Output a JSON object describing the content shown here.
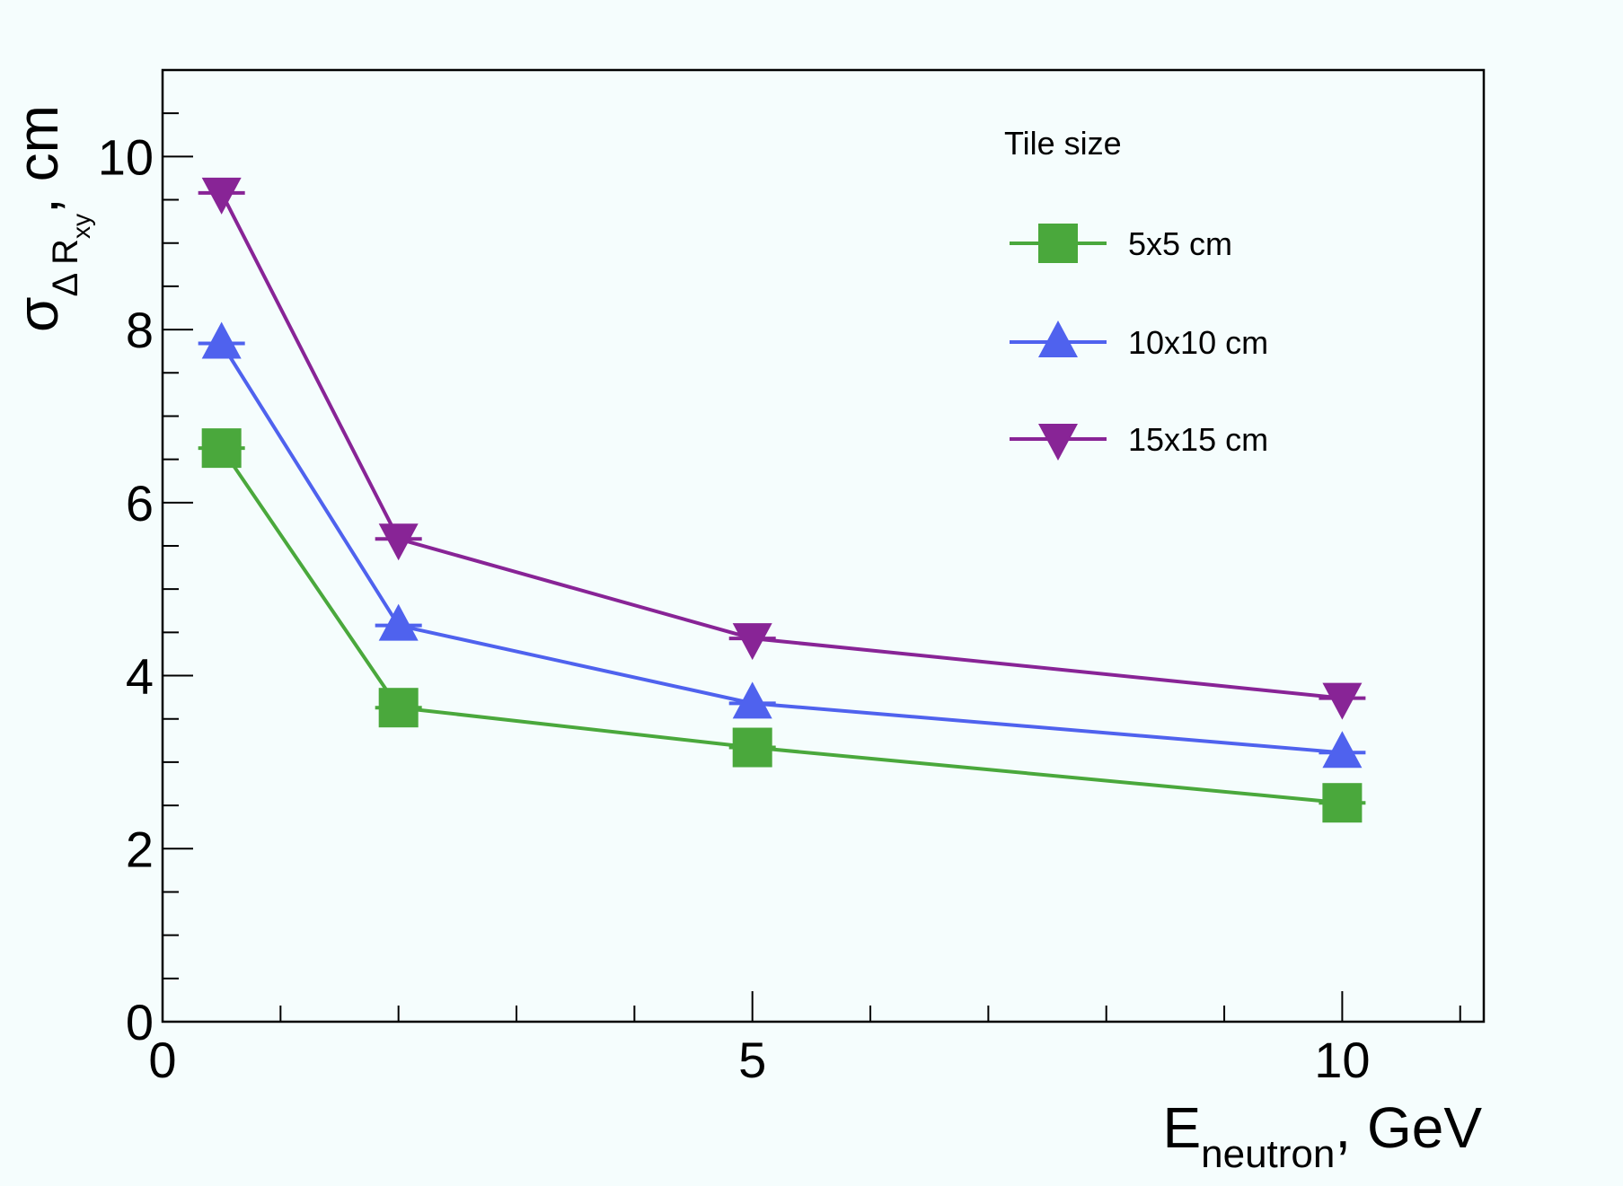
{
  "chart_data": {
    "type": "line",
    "title": "",
    "x_axis": {
      "range": [
        0,
        11.2
      ],
      "ticks": [
        0,
        5,
        10
      ],
      "tick_labels": [
        "0",
        "5",
        "10"
      ],
      "label_main": "E",
      "label_sub": "neutron",
      "label_tail": ", GeV"
    },
    "y_axis": {
      "range": [
        0,
        11
      ],
      "ticks": [
        0,
        2,
        4,
        6,
        8,
        10
      ],
      "tick_labels": [
        "0",
        "2",
        "4",
        "6",
        "8",
        "10"
      ],
      "label_main": "σ",
      "label_sub": "Δ R",
      "label_subsub": "xy",
      "label_tail": ", cm"
    },
    "x": [
      0.5,
      2,
      5,
      10
    ],
    "series": [
      {
        "name": "5x5 cm",
        "color": "#4aa83c",
        "marker": "square",
        "values": [
          6.63,
          3.63,
          3.17,
          2.53
        ]
      },
      {
        "name": "10x10 cm",
        "color": "#4f62ee",
        "marker": "triangle-up",
        "values": [
          7.84,
          4.58,
          3.68,
          3.11
        ]
      },
      {
        "name": "15x15 cm",
        "color": "#882496",
        "marker": "triangle-down",
        "values": [
          9.58,
          5.58,
          4.43,
          3.74
        ]
      }
    ],
    "legend": {
      "title": "Tile size",
      "position": "top-right"
    },
    "grid": false
  }
}
